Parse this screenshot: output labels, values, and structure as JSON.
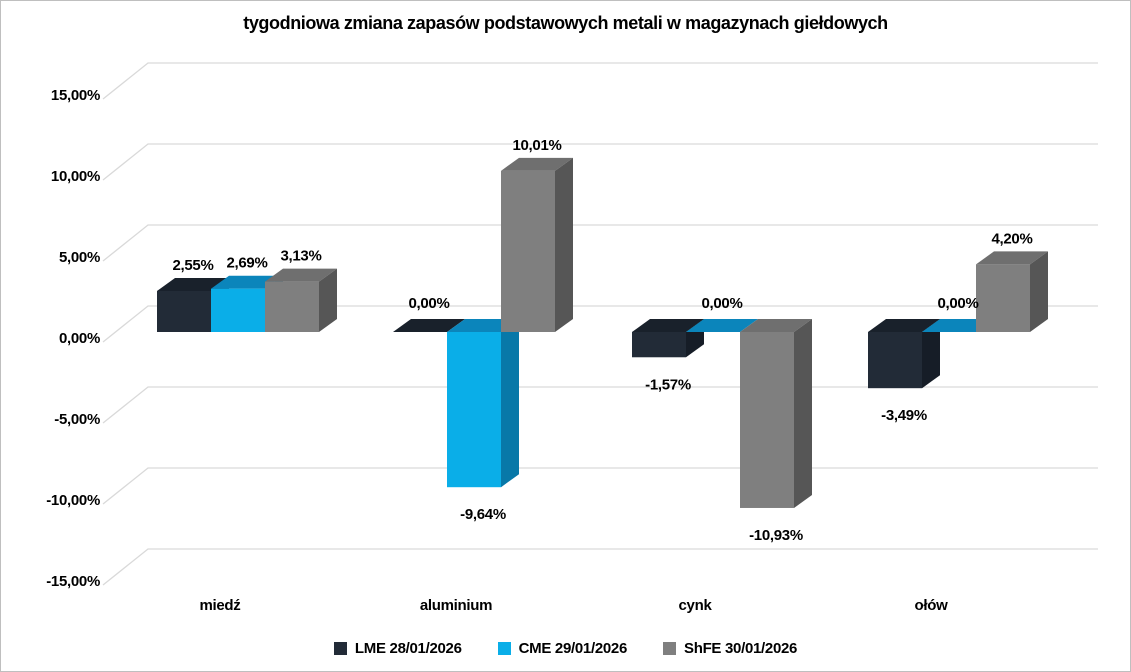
{
  "title": "tygodniowa zmiana zapasów podstawowych metali w magazynach giełdowych",
  "chart_data": {
    "type": "bar",
    "projection": "3d",
    "title": "tygodniowa zmiana zapasów podstawowych metali w magazynach giełdowych",
    "categories": [
      "miedź",
      "aluminium",
      "cynk",
      "ołów"
    ],
    "series": [
      {
        "name": "LME 28/01/2026",
        "values": [
          2.55,
          0.0,
          -1.57,
          -3.49
        ],
        "labels": [
          "2,55%",
          "0,00%",
          "-1,57%",
          "-3,49%"
        ],
        "color_front": "#222B37",
        "color_top": "#19212B",
        "color_side": "#161D27"
      },
      {
        "name": "CME 29/01/2026",
        "values": [
          2.69,
          -9.64,
          0.0,
          0.0
        ],
        "labels": [
          "2,69%",
          "-9,64%",
          "0,00%",
          "0,00%"
        ],
        "color_front": "#0AAEE8",
        "color_top": "#0B85BB",
        "color_side": "#0878A8"
      },
      {
        "name": "ShFE 30/01/2026",
        "values": [
          3.13,
          10.01,
          -10.93,
          4.2
        ],
        "labels": [
          "3,13%",
          "10,01%",
          "-10,93%",
          "4,20%"
        ],
        "color_front": "#7F7F7F",
        "color_top": "#6F6F6F",
        "color_side": "#565656"
      }
    ],
    "ylim": [
      -15,
      15
    ],
    "ytick_step": 5,
    "yticks": [
      "15,00%",
      "10,00%",
      "5,00%",
      "0,00%",
      "-5,00%",
      "-10,00%",
      "-15,00%"
    ],
    "ytick_values": [
      15,
      10,
      5,
      0,
      -5,
      -10,
      -15
    ],
    "grid": true,
    "grid_color": "#D9D9D9",
    "label_color": "#000000",
    "legend_position": "bottom"
  }
}
